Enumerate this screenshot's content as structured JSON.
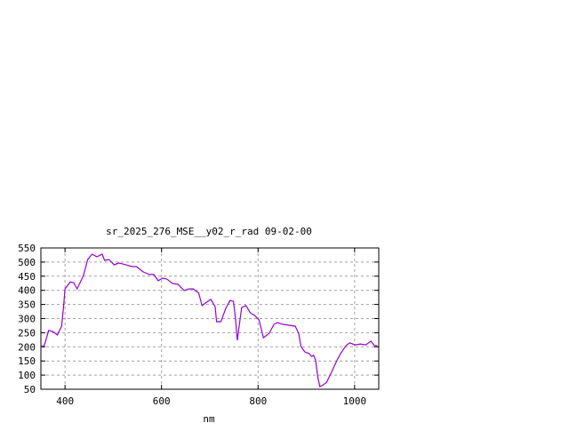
{
  "chart_data": {
    "type": "line",
    "title": "sr_2025_276_MSE__y02_r_rad 09-02-00",
    "xlabel": "nm",
    "ylabel": "",
    "xlim": [
      350,
      1050
    ],
    "ylim": [
      50,
      550
    ],
    "xticks": [
      400,
      600,
      800,
      1000
    ],
    "yticks": [
      50,
      100,
      150,
      200,
      250,
      300,
      350,
      400,
      450,
      500,
      550
    ],
    "grid": true,
    "line_color": "#9400d3",
    "series": [
      {
        "x": [
          350,
          357,
          366,
          375,
          384,
          393,
          397,
          400,
          411,
          418,
          425,
          438,
          447,
          456,
          466,
          477,
          482,
          491,
          502,
          511,
          520,
          539,
          548,
          562,
          575,
          584,
          593,
          602,
          611,
          623,
          634,
          647,
          656,
          666,
          677,
          684,
          693,
          702,
          711,
          714,
          723,
          733,
          742,
          749,
          753,
          757,
          760,
          766,
          775,
          784,
          793,
          802,
          811,
          823,
          833,
          840,
          851,
          866,
          877,
          884,
          889,
          897,
          906,
          911,
          915,
          919,
          924,
          928,
          933,
          942,
          953,
          964,
          971,
          982,
          990,
          1001,
          1012,
          1023,
          1034,
          1041,
          1047
        ],
        "y": [
          201,
          204,
          258,
          254,
          242,
          273,
          342,
          405,
          430,
          427,
          405,
          452,
          509,
          528,
          519,
          528,
          506,
          509,
          490,
          497,
          493,
          484,
          484,
          465,
          456,
          456,
          434,
          443,
          440,
          424,
          421,
          399,
          405,
          405,
          390,
          346,
          358,
          368,
          342,
          289,
          289,
          336,
          364,
          361,
          302,
          223,
          264,
          339,
          346,
          320,
          311,
          295,
          232,
          248,
          280,
          286,
          280,
          276,
          273,
          248,
          201,
          182,
          176,
          166,
          170,
          154,
          91,
          59,
          63,
          75,
          113,
          154,
          176,
          204,
          214,
          207,
          210,
          207,
          220,
          204,
          204
        ]
      }
    ]
  }
}
